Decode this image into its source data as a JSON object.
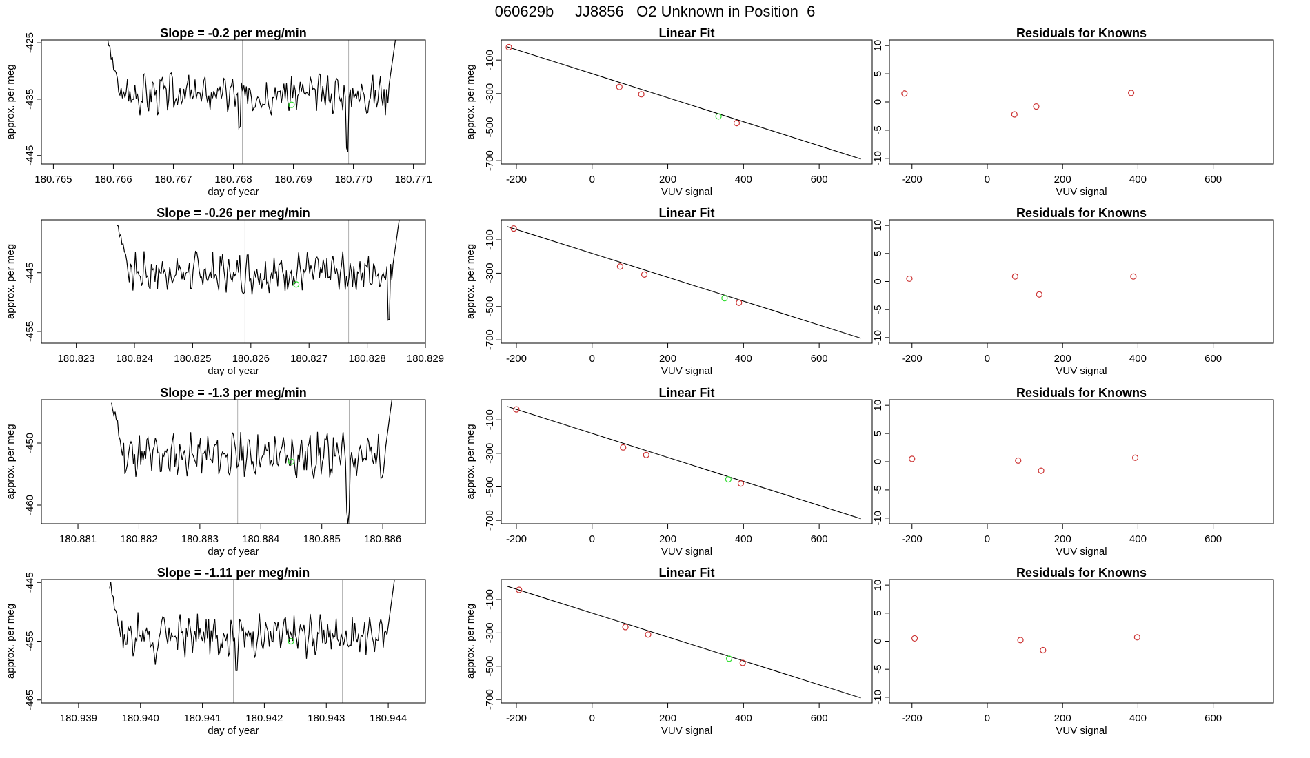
{
  "page_title": "060629b     JJ8856   O2 Unknown in Position  6",
  "colors": {
    "trace": "#000000",
    "known": "#cc3333",
    "unknown": "#33dd33",
    "marker": "#b0b0b0",
    "frame": "#000000"
  },
  "chart_data": [
    {
      "type": "line",
      "title": "Slope =  -0.2  per meg/min",
      "xlabel": "day of year",
      "ylabel": "approx. per meg",
      "xlim": [
        180.7648,
        180.7712
      ],
      "ylim": [
        -446.5,
        -424.5
      ],
      "xticks": [
        "180.765",
        "180.766",
        "180.767",
        "180.768",
        "180.769",
        "180.770",
        "180.771"
      ],
      "yticks": [
        -425,
        -435,
        -445
      ],
      "markers": [
        180.76815,
        180.76992
      ],
      "trace": {
        "x0": 180.7659,
        "x1": 180.7707,
        "base": -434,
        "amp": 2.5,
        "start": -425,
        "end": -424.5,
        "dips": [
          [
            180.7681,
            -441
          ],
          [
            180.7699,
            -445
          ]
        ],
        "seed": 3
      },
      "unknown_point": {
        "x": 180.76897,
        "y": -436
      }
    },
    {
      "type": "scatter",
      "title": "Linear Fit",
      "xlabel": "VUV signal",
      "ylabel": "approx. per meg",
      "xlim": [
        -240,
        740
      ],
      "ylim": [
        -720,
        20
      ],
      "xticks": [
        -200,
        0,
        200,
        400,
        600
      ],
      "yticks": [
        -100,
        -300,
        -500,
        -700
      ],
      "line": [
        [
          -225,
          -20
        ],
        [
          710,
          -690
        ]
      ],
      "knowns": [
        [
          -220,
          -23
        ],
        [
          72,
          -260
        ],
        [
          130,
          -304
        ],
        [
          382,
          -476
        ]
      ],
      "unknowns": [
        [
          334,
          -436
        ]
      ]
    },
    {
      "type": "scatter",
      "title": "Residuals for Knowns",
      "xlabel": "VUV signal",
      "ylabel": "",
      "xlim": [
        -260,
        760
      ],
      "ylim": [
        -11,
        11
      ],
      "xticks": [
        -200,
        0,
        200,
        400,
        600
      ],
      "yticks": [
        10,
        5,
        0,
        -5,
        -10
      ],
      "knowns": [
        [
          -220,
          1.5
        ],
        [
          72,
          -2.2
        ],
        [
          130,
          -0.8
        ],
        [
          382,
          1.6
        ]
      ]
    },
    {
      "type": "line",
      "title": "Slope =  -0.26  per meg/min",
      "xlabel": "day of year",
      "ylabel": "approx. per meg",
      "xlim": [
        180.8224,
        180.829
      ],
      "ylim": [
        -457,
        -436
      ],
      "xticks": [
        "180.823",
        "180.824",
        "180.825",
        "180.826",
        "180.827",
        "180.828",
        "180.829"
      ],
      "yticks": [
        -445,
        -455
      ],
      "markers": [
        180.8259,
        180.82768
      ],
      "trace": {
        "x0": 180.8237,
        "x1": 180.82855,
        "base": -445,
        "amp": 2.5,
        "start": -436,
        "end": -436,
        "dips": [
          [
            180.82837,
            -454
          ]
        ],
        "seed": 7
      },
      "unknown_point": {
        "x": 180.82678,
        "y": -447
      }
    },
    {
      "type": "scatter",
      "title": "Linear Fit",
      "xlabel": "VUV signal",
      "ylabel": "approx. per meg",
      "xlim": [
        -240,
        740
      ],
      "ylim": [
        -720,
        20
      ],
      "xticks": [
        -200,
        0,
        200,
        400,
        600
      ],
      "yticks": [
        -100,
        -300,
        -500,
        -700
      ],
      "line": [
        [
          -225,
          -20
        ],
        [
          710,
          -690
        ]
      ],
      "knowns": [
        [
          -207,
          -32
        ],
        [
          74,
          -260
        ],
        [
          138,
          -308
        ],
        [
          388,
          -477
        ]
      ],
      "unknowns": [
        [
          350,
          -450
        ]
      ]
    },
    {
      "type": "scatter",
      "title": "Residuals for Knowns",
      "xlabel": "VUV signal",
      "ylabel": "",
      "xlim": [
        -260,
        760
      ],
      "ylim": [
        -11,
        11
      ],
      "xticks": [
        -200,
        0,
        200,
        400,
        600
      ],
      "yticks": [
        10,
        5,
        0,
        -5,
        -10
      ],
      "knowns": [
        [
          -207,
          0.5
        ],
        [
          74,
          0.9
        ],
        [
          138,
          -2.3
        ],
        [
          388,
          0.9
        ]
      ]
    },
    {
      "type": "line",
      "title": "Slope =  -1.3  per meg/min",
      "xlabel": "day of year",
      "ylabel": "approx. per meg",
      "xlim": [
        180.8804,
        180.8867
      ],
      "ylim": [
        -463,
        -443
      ],
      "xticks": [
        "180.881",
        "180.882",
        "180.883",
        "180.884",
        "180.885",
        "180.886"
      ],
      "yticks": [
        -450,
        -460
      ],
      "markers": [
        180.88362,
        180.88545
      ],
      "trace": {
        "x0": 180.88155,
        "x1": 180.88615,
        "base": -452,
        "amp": 2.5,
        "start": -443,
        "end": -443,
        "dips": [
          [
            180.88543,
            -463
          ]
        ],
        "seed": 11
      },
      "unknown_point": {
        "x": 180.8845,
        "y": -453
      }
    },
    {
      "type": "scatter",
      "title": "Linear Fit",
      "xlabel": "VUV signal",
      "ylabel": "approx. per meg",
      "xlim": [
        -240,
        740
      ],
      "ylim": [
        -720,
        20
      ],
      "xticks": [
        -200,
        0,
        200,
        400,
        600
      ],
      "yticks": [
        -100,
        -300,
        -500,
        -700
      ],
      "line": [
        [
          -225,
          -20
        ],
        [
          710,
          -690
        ]
      ],
      "knowns": [
        [
          -200,
          -38
        ],
        [
          82,
          -265
        ],
        [
          143,
          -310
        ],
        [
          393,
          -480
        ]
      ],
      "unknowns": [
        [
          360,
          -455
        ]
      ]
    },
    {
      "type": "scatter",
      "title": "Residuals for Knowns",
      "xlabel": "VUV signal",
      "ylabel": "",
      "xlim": [
        -260,
        760
      ],
      "ylim": [
        -11,
        11
      ],
      "xticks": [
        -200,
        0,
        200,
        400,
        600
      ],
      "yticks": [
        10,
        5,
        0,
        -5,
        -10
      ],
      "knowns": [
        [
          -200,
          0.5
        ],
        [
          82,
          0.2
        ],
        [
          143,
          -1.6
        ],
        [
          393,
          0.7
        ]
      ]
    },
    {
      "type": "line",
      "title": "Slope =  -1.11  per meg/min",
      "xlabel": "day of year",
      "ylabel": "approx. per meg",
      "xlim": [
        180.9384,
        180.9446
      ],
      "ylim": [
        -465.5,
        -444.5
      ],
      "xticks": [
        "180.939",
        "180.940",
        "180.941",
        "180.942",
        "180.943",
        "180.944"
      ],
      "yticks": [
        -445,
        -455,
        -465
      ],
      "markers": [
        180.9415,
        180.94326
      ],
      "trace": {
        "x0": 180.9395,
        "x1": 180.9441,
        "base": -454,
        "amp": 2.5,
        "start": -445,
        "end": -444.5,
        "dips": [
          [
            180.94024,
            -459
          ],
          [
            180.94155,
            -461
          ]
        ],
        "seed": 17
      },
      "unknown_point": {
        "x": 180.94243,
        "y": -455
      }
    },
    {
      "type": "scatter",
      "title": "Linear Fit",
      "xlabel": "VUV signal",
      "ylabel": "approx. per meg",
      "xlim": [
        -240,
        740
      ],
      "ylim": [
        -720,
        20
      ],
      "xticks": [
        -200,
        0,
        200,
        400,
        600
      ],
      "yticks": [
        -100,
        -300,
        -500,
        -700
      ],
      "line": [
        [
          -225,
          -20
        ],
        [
          710,
          -690
        ]
      ],
      "knowns": [
        [
          -193,
          -42
        ],
        [
          88,
          -265
        ],
        [
          148,
          -310
        ],
        [
          398,
          -480
        ]
      ],
      "unknowns": [
        [
          362,
          -455
        ]
      ]
    },
    {
      "type": "scatter",
      "title": "Residuals for Knowns",
      "xlabel": "VUV signal",
      "ylabel": "",
      "xlim": [
        -260,
        760
      ],
      "ylim": [
        -11,
        11
      ],
      "xticks": [
        -200,
        0,
        200,
        400,
        600
      ],
      "yticks": [
        10,
        5,
        0,
        -5,
        -10
      ],
      "knowns": [
        [
          -193,
          0.5
        ],
        [
          88,
          0.2
        ],
        [
          148,
          -1.6
        ],
        [
          398,
          0.7
        ]
      ]
    }
  ]
}
